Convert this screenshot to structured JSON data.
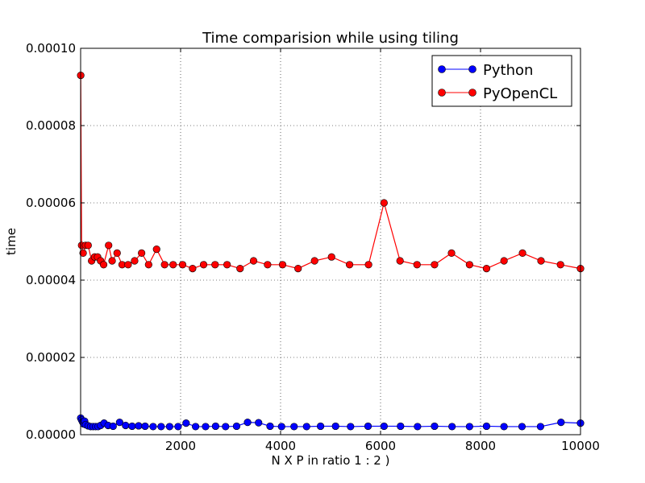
{
  "chart_data": {
    "type": "line",
    "title": "Time comparision while using tiling",
    "xlabel": "N X P in ratio 1 : 2 )",
    "ylabel": "time",
    "xlim": [
      0,
      10000
    ],
    "ylim": [
      0,
      0.0001
    ],
    "xticks": [
      2000,
      4000,
      6000,
      8000,
      10000
    ],
    "xtick_labels": [
      "2000",
      "4000",
      "6000",
      "8000",
      "10000"
    ],
    "yticks": [
      0,
      2e-05,
      4e-05,
      6e-05,
      8e-05,
      0.0001
    ],
    "ytick_labels": [
      "0.00000",
      "0.00002",
      "0.00004",
      "0.00006",
      "0.00008",
      "0.00010"
    ],
    "grid": true,
    "legend_position": "top-right",
    "series": [
      {
        "name": "Python",
        "color": "#0000ff",
        "points": [
          [
            2,
            4.3e-06
          ],
          [
            20,
            3.8e-06
          ],
          [
            40,
            3.3e-06
          ],
          [
            60,
            2.8e-06
          ],
          [
            80,
            3.5e-06
          ],
          [
            100,
            2.6e-06
          ],
          [
            150,
            2.3e-06
          ],
          [
            200,
            2.1e-06
          ],
          [
            250,
            2.1e-06
          ],
          [
            300,
            2.1e-06
          ],
          [
            350,
            2.1e-06
          ],
          [
            400,
            2.4e-06
          ],
          [
            470,
            3e-06
          ],
          [
            550,
            2.4e-06
          ],
          [
            650,
            2.2e-06
          ],
          [
            780,
            3.2e-06
          ],
          [
            900,
            2.4e-06
          ],
          [
            1030,
            2.2e-06
          ],
          [
            1160,
            2.3e-06
          ],
          [
            1290,
            2.2e-06
          ],
          [
            1450,
            2.1e-06
          ],
          [
            1610,
            2.1e-06
          ],
          [
            1780,
            2.1e-06
          ],
          [
            1950,
            2.1e-06
          ],
          [
            2110,
            3e-06
          ],
          [
            2300,
            2.1e-06
          ],
          [
            2500,
            2.1e-06
          ],
          [
            2700,
            2.2e-06
          ],
          [
            2900,
            2.1e-06
          ],
          [
            3120,
            2.2e-06
          ],
          [
            3340,
            3.2e-06
          ],
          [
            3560,
            3.1e-06
          ],
          [
            3790,
            2.2e-06
          ],
          [
            4020,
            2.1e-06
          ],
          [
            4270,
            2.1e-06
          ],
          [
            4520,
            2.1e-06
          ],
          [
            4800,
            2.2e-06
          ],
          [
            5100,
            2.2e-06
          ],
          [
            5400,
            2.1e-06
          ],
          [
            5750,
            2.2e-06
          ],
          [
            6070,
            2.2e-06
          ],
          [
            6400,
            2.2e-06
          ],
          [
            6740,
            2.1e-06
          ],
          [
            7080,
            2.2e-06
          ],
          [
            7430,
            2.1e-06
          ],
          [
            7780,
            2.1e-06
          ],
          [
            8120,
            2.2e-06
          ],
          [
            8470,
            2.1e-06
          ],
          [
            8830,
            2.1e-06
          ],
          [
            9200,
            2.1e-06
          ],
          [
            9610,
            3.2e-06
          ],
          [
            10000,
            3e-06
          ]
        ]
      },
      {
        "name": "PyOpenCL",
        "color": "#ff0000",
        "points": [
          [
            2,
            9.3e-05
          ],
          [
            20,
            4.9e-05
          ],
          [
            50,
            4.7e-05
          ],
          [
            100,
            4.9e-05
          ],
          [
            150,
            4.9e-05
          ],
          [
            220,
            4.5e-05
          ],
          [
            280,
            4.6e-05
          ],
          [
            340,
            4.6e-05
          ],
          [
            400,
            4.5e-05
          ],
          [
            460,
            4.4e-05
          ],
          [
            560,
            4.9e-05
          ],
          [
            630,
            4.5e-05
          ],
          [
            730,
            4.7e-05
          ],
          [
            830,
            4.4e-05
          ],
          [
            950,
            4.4e-05
          ],
          [
            1080,
            4.5e-05
          ],
          [
            1220,
            4.7e-05
          ],
          [
            1360,
            4.4e-05
          ],
          [
            1520,
            4.8e-05
          ],
          [
            1680,
            4.4e-05
          ],
          [
            1850,
            4.4e-05
          ],
          [
            2040,
            4.4e-05
          ],
          [
            2240,
            4.3e-05
          ],
          [
            2460,
            4.4e-05
          ],
          [
            2690,
            4.4e-05
          ],
          [
            2930,
            4.4e-05
          ],
          [
            3190,
            4.3e-05
          ],
          [
            3460,
            4.5e-05
          ],
          [
            3740,
            4.4e-05
          ],
          [
            4040,
            4.4e-05
          ],
          [
            4350,
            4.3e-05
          ],
          [
            4680,
            4.5e-05
          ],
          [
            5020,
            4.6e-05
          ],
          [
            5380,
            4.4e-05
          ],
          [
            5760,
            4.4e-05
          ],
          [
            6070,
            6e-05
          ],
          [
            6390,
            4.5e-05
          ],
          [
            6730,
            4.4e-05
          ],
          [
            7080,
            4.4e-05
          ],
          [
            7420,
            4.7e-05
          ],
          [
            7780,
            4.4e-05
          ],
          [
            8120,
            4.3e-05
          ],
          [
            8470,
            4.5e-05
          ],
          [
            8840,
            4.7e-05
          ],
          [
            9210,
            4.5e-05
          ],
          [
            9600,
            4.4e-05
          ],
          [
            10000,
            4.3e-05
          ]
        ]
      }
    ]
  }
}
